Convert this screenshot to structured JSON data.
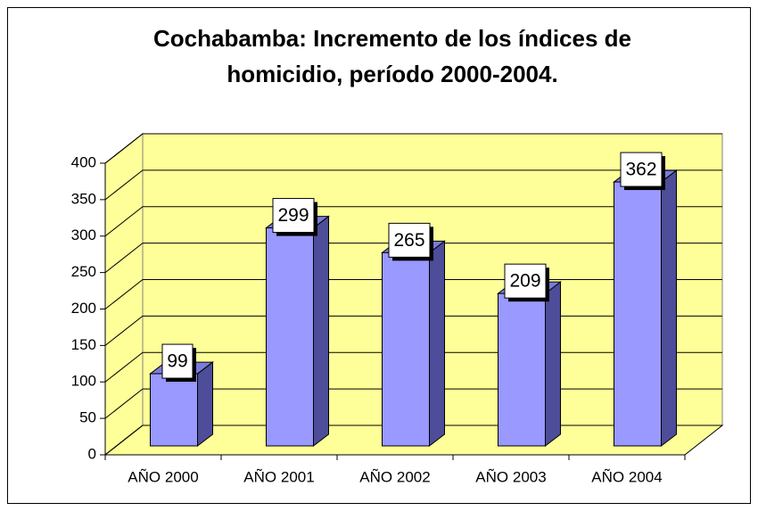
{
  "chart_data": {
    "type": "bar3d",
    "title": [
      "Cochabamba: Incremento de los índices de",
      "homicidio, período 2000-2004."
    ],
    "categories": [
      "AÑO 2000",
      "AÑO 2001",
      "AÑO 2002",
      "AÑO 2003",
      "AÑO 2004"
    ],
    "values": [
      99,
      299,
      265,
      209,
      362
    ],
    "color": "#9999ff",
    "wall_color": "#ffff99",
    "ylim": [
      0,
      400
    ],
    "yticks": [
      0,
      50,
      100,
      150,
      200,
      250,
      300,
      350,
      400
    ],
    "grid": true,
    "data_labels": true
  }
}
